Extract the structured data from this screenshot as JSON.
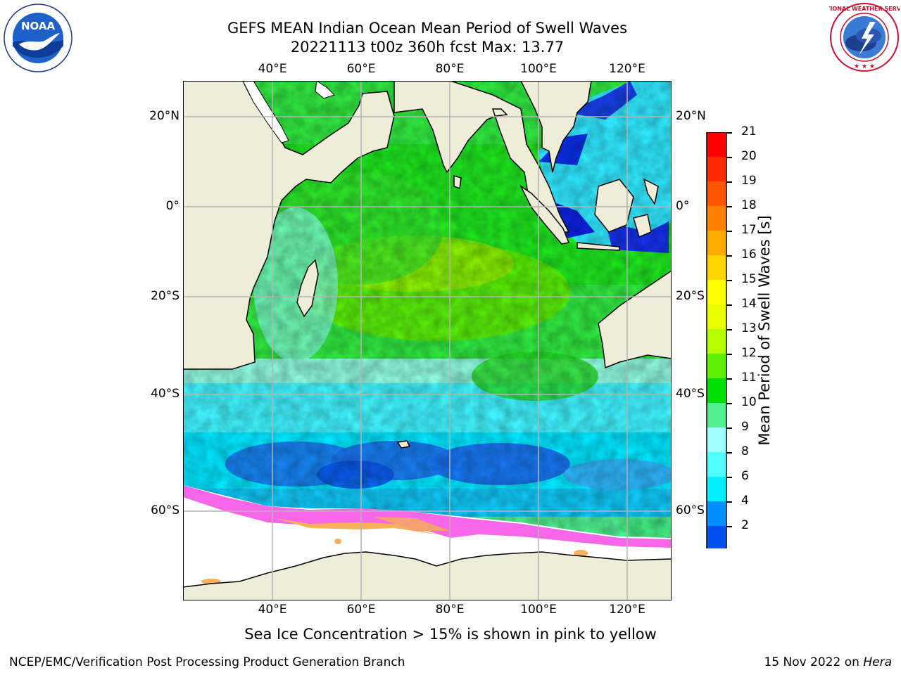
{
  "header": {
    "title_line1": "GEFS MEAN Indian Ocean Mean Period of Swell Waves",
    "title_line2": "20221113 t00z 360h fcst   Max: 13.77"
  },
  "logos": {
    "noaa_text": "NOAA",
    "noaa_ring": "NATIONAL OCEANIC AND ATMOSPHERIC ADMINISTRATION · U.S. DEPARTMENT OF COMMERCE",
    "nws_ring": "NATIONAL WEATHER SERVICE"
  },
  "map": {
    "lon_labels": [
      "40°E",
      "60°E",
      "80°E",
      "100°E",
      "120°E"
    ],
    "lat_labels": [
      "20°N",
      "0°",
      "20°S",
      "40°S",
      "60°S"
    ],
    "colors": {
      "land": "#eeedd8",
      "sea_ice_white": "#ffffff",
      "ice_pink": "#f765e8",
      "ice_orange": "#f7b259",
      "grid": "#b4b4b4"
    }
  },
  "colorbar": {
    "label": "Mean Period of Swell Waves [s]",
    "ticks": [
      "21",
      "20",
      "19",
      "18",
      "17",
      "16",
      "15",
      "14",
      "13",
      "12",
      "11",
      "10",
      "9",
      "8",
      "6",
      "4",
      "2"
    ],
    "colors": [
      "#ff0000",
      "#ff2a00",
      "#ff5500",
      "#ff8000",
      "#ffaa00",
      "#ffd400",
      "#ffff00",
      "#e8ff00",
      "#b4ff00",
      "#5cf000",
      "#00e000",
      "#50f090",
      "#a0ffff",
      "#50ffff",
      "#00f0ff",
      "#0090ff",
      "#0050f0"
    ],
    "under_color": "#0000ff"
  },
  "caption": "Sea Ice Concentration > 15% is shown in pink to yellow",
  "footer": {
    "left": "NCEP/EMC/Verification Post Processing Product Generation Branch",
    "right_date": "15 Nov 2022 on ",
    "right_host": "Hera"
  }
}
